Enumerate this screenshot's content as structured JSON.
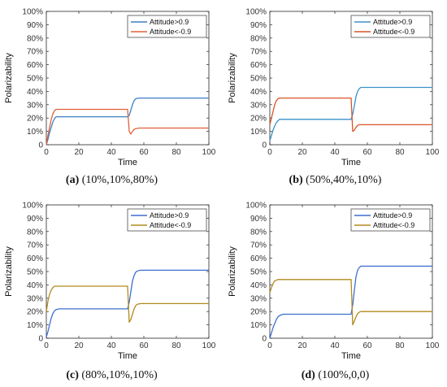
{
  "chart_data": [
    {
      "type": "line",
      "caption_letter": "(a)",
      "caption_rest": " (10%,10%,80%)",
      "xlabel": "Time",
      "ylabel": "Polarizability",
      "xlim": [
        0,
        100
      ],
      "ylim": [
        0,
        100
      ],
      "xticks": [
        "0",
        "20",
        "40",
        "60",
        "80",
        "100"
      ],
      "yticks": [
        "0",
        "10%",
        "20%",
        "30%",
        "40%",
        "50%",
        "60%",
        "70%",
        "80%",
        "90%",
        "100%"
      ],
      "legend_position": "top-right",
      "series": [
        {
          "name": "Attitude>0.9",
          "color": "#3d7fc1",
          "x": [
            0,
            1,
            2,
            3,
            4,
            5,
            6,
            8,
            10,
            49.5,
            50,
            51,
            52,
            53,
            54,
            55,
            57,
            60,
            100
          ],
          "y": [
            0,
            4,
            9,
            13,
            17,
            19.5,
            21,
            21,
            21,
            21,
            21,
            22,
            26,
            30,
            33,
            34.5,
            35,
            35,
            35
          ]
        },
        {
          "name": "Attitude<-0.9",
          "color": "#e06038",
          "x": [
            0,
            1,
            2,
            3,
            4,
            5,
            6,
            8,
            10,
            49.5,
            50,
            51,
            52,
            53,
            54,
            55,
            57,
            60,
            100
          ],
          "y": [
            0,
            7,
            13,
            19,
            23,
            25.5,
            26.5,
            26.5,
            26.5,
            26.5,
            26.5,
            10,
            8,
            10,
            11.5,
            12,
            12.5,
            12.5,
            12.5
          ]
        }
      ]
    },
    {
      "type": "line",
      "caption_letter": "(b)",
      "caption_rest": " (50%,40%,10%)",
      "xlabel": "Time",
      "ylabel": "Polarizability",
      "xlim": [
        0,
        100
      ],
      "ylim": [
        0,
        100
      ],
      "xticks": [
        "0",
        "20",
        "40",
        "60",
        "80",
        "100"
      ],
      "yticks": [
        "0",
        "10%",
        "20%",
        "30%",
        "40%",
        "50%",
        "60%",
        "70%",
        "80%",
        "90%",
        "100%"
      ],
      "legend_position": "top-right",
      "series": [
        {
          "name": "Attitude>0.9",
          "color": "#3a92c8",
          "x": [
            0,
            1,
            2,
            3,
            4,
            5,
            6,
            8,
            10,
            50,
            51,
            52,
            53,
            54,
            55,
            56,
            58,
            60,
            100
          ],
          "y": [
            3,
            7,
            11,
            14,
            16.5,
            18,
            19,
            19,
            19,
            19,
            23,
            29,
            36,
            40,
            42,
            43,
            43,
            43,
            43
          ]
        },
        {
          "name": "Attitude<-0.9",
          "color": "#d95328",
          "x": [
            0,
            1,
            2,
            3,
            4,
            5,
            6,
            8,
            10,
            50,
            51,
            52,
            53,
            54,
            55,
            56,
            58,
            60,
            100
          ],
          "y": [
            15,
            20,
            25,
            30,
            33,
            34.5,
            35,
            35,
            35,
            35,
            10,
            11,
            13,
            14.5,
            15,
            15,
            15,
            15,
            15
          ]
        }
      ]
    },
    {
      "type": "line",
      "caption_letter": "(c)",
      "caption_rest": " (80%,10%,10%)",
      "xlabel": "Time",
      "ylabel": "Polarizability",
      "xlim": [
        0,
        100
      ],
      "ylim": [
        0,
        100
      ],
      "xticks": [
        "0",
        "20",
        "40",
        "60",
        "80",
        "100"
      ],
      "yticks": [
        "0",
        "10%",
        "20%",
        "30%",
        "40%",
        "50%",
        "60%",
        "70%",
        "80%",
        "90%",
        "100%"
      ],
      "legend_position": "top-right",
      "series": [
        {
          "name": "Attitude>0.9",
          "color": "#3f6fcf",
          "x": [
            0,
            1,
            2,
            3,
            4,
            5,
            6,
            8,
            10,
            50,
            51,
            52,
            53,
            54,
            55,
            56,
            58,
            60,
            100
          ],
          "y": [
            1,
            5,
            10,
            15,
            18.5,
            20.5,
            21.5,
            22,
            22,
            22,
            27,
            35,
            43,
            47,
            49.5,
            50.5,
            51,
            51,
            51
          ]
        },
        {
          "name": "Attitude<-0.9",
          "color": "#b28a1e",
          "x": [
            0,
            1,
            2,
            3,
            4,
            5,
            6,
            8,
            10,
            50,
            51,
            52,
            53,
            54,
            55,
            56,
            58,
            60,
            100
          ],
          "y": [
            20,
            28,
            33,
            36,
            38,
            39,
            39,
            39,
            39,
            39,
            12,
            14,
            18,
            22,
            24.5,
            25.5,
            26,
            26,
            26
          ]
        }
      ]
    },
    {
      "type": "line",
      "caption_letter": "(d)",
      "caption_rest": " (100%,0,0)",
      "xlabel": "Time",
      "ylabel": "Polarizability",
      "xlim": [
        0,
        100
      ],
      "ylim": [
        0,
        100
      ],
      "xticks": [
        "0",
        "20",
        "40",
        "60",
        "80",
        "100"
      ],
      "yticks": [
        "0",
        "10%",
        "20%",
        "30%",
        "40%",
        "50%",
        "60%",
        "70%",
        "80%",
        "90%",
        "100%"
      ],
      "legend_position": "top-right",
      "series": [
        {
          "name": "Attitude>0.9",
          "color": "#3f6fcf",
          "x": [
            0,
            1,
            2,
            3,
            4,
            5,
            6,
            8,
            10,
            50,
            51,
            52,
            53,
            54,
            55,
            56,
            58,
            60,
            100
          ],
          "y": [
            0,
            4,
            8,
            11,
            14,
            16,
            17,
            18,
            18,
            18,
            25,
            36,
            46,
            51,
            53,
            54,
            54,
            54,
            54
          ]
        },
        {
          "name": "Attitude<-0.9",
          "color": "#b28a1e",
          "x": [
            0,
            1,
            2,
            3,
            4,
            5,
            6,
            8,
            10,
            50,
            51,
            52,
            53,
            54,
            55,
            56,
            58,
            60,
            100
          ],
          "y": [
            34,
            38,
            41,
            43,
            43.5,
            44,
            44,
            44,
            44,
            44,
            10,
            13,
            16,
            18.5,
            19.5,
            20,
            20,
            20,
            20
          ]
        }
      ]
    }
  ]
}
